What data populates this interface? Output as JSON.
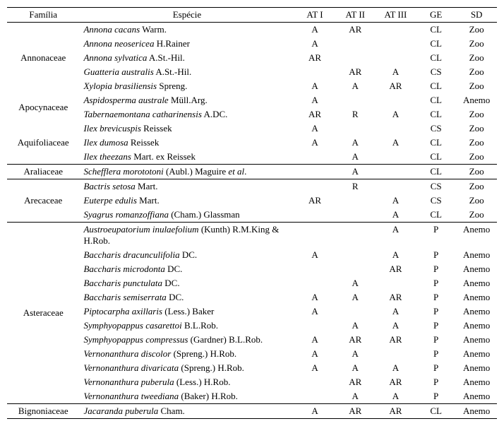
{
  "header": {
    "familia": "Família",
    "especie": "Espécie",
    "at1": "AT I",
    "at2": "AT II",
    "at3": "AT III",
    "ge": "GE",
    "sd": "SD"
  },
  "groups": [
    {
      "family": "Annonaceae",
      "family_rowspan": 5,
      "rows": [
        {
          "sp": "Annona cacans",
          "auth": " Warm.",
          "at1": "A",
          "at2": "AR",
          "at3": "",
          "ge": "CL",
          "sd": "Zoo"
        },
        {
          "sp": "Annona neosericea",
          "auth": " H.Rainer",
          "at1": "A",
          "at2": "",
          "at3": "",
          "ge": "CL",
          "sd": "Zoo"
        },
        {
          "sp": "Annona sylvatica",
          "auth": " A.St.-Hil.",
          "at1": "AR",
          "at2": "",
          "at3": "",
          "ge": "CL",
          "sd": "Zoo"
        },
        {
          "sp": "Guatteria australis",
          "auth": " A.St.-Hil.",
          "at1": "",
          "at2": "AR",
          "at3": "A",
          "ge": "CS",
          "sd": "Zoo"
        },
        {
          "sp": "Xylopia brasiliensis",
          "auth": " Spreng.",
          "at1": "A",
          "at2": "A",
          "at3": "AR",
          "ge": "CL",
          "sd": "Zoo"
        }
      ]
    },
    {
      "family": "Apocynaceae",
      "family_rowspan": 2,
      "rows": [
        {
          "sp": "Aspidosperma australe",
          "auth": " Müll.Arg.",
          "at1": "A",
          "at2": "",
          "at3": "",
          "ge": "CL",
          "sd": "Anemo"
        },
        {
          "sp": "Tabernaemontana catharinensis",
          "auth": " A.DC.",
          "at1": "AR",
          "at2": "R",
          "at3": "A",
          "ge": "CL",
          "sd": "Zoo"
        }
      ]
    },
    {
      "family": "Aquifoliaceae",
      "family_rowspan": 3,
      "group_end": true,
      "rows": [
        {
          "sp": "Ilex brevicuspis",
          "auth": " Reissek",
          "at1": "A",
          "at2": "",
          "at3": "",
          "ge": "CS",
          "sd": "Zoo"
        },
        {
          "sp": "Ilex dumosa",
          "auth": " Reissek",
          "at1": "A",
          "at2": "A",
          "at3": "A",
          "ge": "CL",
          "sd": "Zoo"
        },
        {
          "sp": "Ilex theezans",
          "auth": " Mart. ex Reissek",
          "at1": "",
          "at2": "A",
          "at3": "",
          "ge": "CL",
          "sd": "Zoo"
        }
      ]
    },
    {
      "family": "Araliaceae",
      "family_rowspan": 1,
      "group_end": true,
      "rows": [
        {
          "sp": "Schefflera morototoni",
          "auth": " (Aubl.) Maguire ",
          "auth_ital": "et al",
          "auth_tail": ".",
          "at1": "",
          "at2": "A",
          "at3": "",
          "ge": "CL",
          "sd": "Zoo"
        }
      ]
    },
    {
      "family": "Arecaceae",
      "family_rowspan": 3,
      "group_end": true,
      "rows": [
        {
          "sp": "Bactris setosa",
          "auth": " Mart.",
          "at1": "",
          "at2": "R",
          "at3": "",
          "ge": "CS",
          "sd": "Zoo"
        },
        {
          "sp": "Euterpe edulis",
          "auth": " Mart.",
          "at1": "AR",
          "at2": "",
          "at3": "A",
          "ge": "CS",
          "sd": "Zoo"
        },
        {
          "sp": "Syagrus romanzoffiana",
          "auth": " (Cham.) Glassman",
          "at1": "",
          "at2": "",
          "at3": "A",
          "ge": "CL",
          "sd": "Zoo"
        }
      ]
    },
    {
      "family": "Asteraceae",
      "family_rowspan": 12,
      "group_end": true,
      "rows": [
        {
          "sp": "Austroeupatorium inulaefolium",
          "auth": " (Kunth) R.M.King & H.Rob.",
          "at1": "",
          "at2": "",
          "at3": "A",
          "ge": "P",
          "sd": "Anemo"
        },
        {
          "sp": "Baccharis dracunculifolia",
          "auth": " DC.",
          "at1": "A",
          "at2": "",
          "at3": "A",
          "ge": "P",
          "sd": "Anemo"
        },
        {
          "sp": "Baccharis microdonta",
          "auth": " DC.",
          "at1": "",
          "at2": "",
          "at3": "AR",
          "ge": "P",
          "sd": "Anemo"
        },
        {
          "sp": "Baccharis punctulata",
          "auth": " DC.",
          "at1": "",
          "at2": "A",
          "at3": "",
          "ge": "P",
          "sd": "Anemo"
        },
        {
          "sp": "Baccharis semiserrata",
          "auth": " DC.",
          "at1": "A",
          "at2": "A",
          "at3": "AR",
          "ge": "P",
          "sd": "Anemo"
        },
        {
          "sp": "Piptocarpha axillaris",
          "auth": " (Less.) Baker",
          "at1": "A",
          "at2": "",
          "at3": "A",
          "ge": "P",
          "sd": "Anemo"
        },
        {
          "sp": "Symphyopappus casarettoi",
          "auth": " B.L.Rob.",
          "at1": "",
          "at2": "A",
          "at3": "A",
          "ge": "P",
          "sd": "Anemo"
        },
        {
          "sp": "Symphyopappus compressus",
          "auth": " (Gardner) B.L.Rob.",
          "at1": "A",
          "at2": "AR",
          "at3": "AR",
          "ge": "P",
          "sd": "Anemo"
        },
        {
          "sp": "Vernonanthura discolor",
          "auth": " (Spreng.) H.Rob.",
          "at1": "A",
          "at2": "A",
          "at3": "",
          "ge": "P",
          "sd": "Anemo"
        },
        {
          "sp": "Vernonanthura divaricata",
          "auth": " (Spreng.) H.Rob.",
          "at1": "A",
          "at2": "A",
          "at3": "A",
          "ge": "P",
          "sd": "Anemo"
        },
        {
          "sp": "Vernonanthura puberula",
          "auth": " (Less.) H.Rob.",
          "at1": "",
          "at2": "AR",
          "at3": "AR",
          "ge": "P",
          "sd": "Anemo"
        },
        {
          "sp": "Vernonanthura tweediana",
          "auth": " (Baker) H.Rob.",
          "at1": "",
          "at2": "A",
          "at3": "A",
          "ge": "P",
          "sd": "Anemo"
        }
      ]
    },
    {
      "family": "Bignoniaceae",
      "family_rowspan": 1,
      "rows": [
        {
          "sp": "Jacaranda puberula",
          "auth": " Cham.",
          "at1": "A",
          "at2": "AR",
          "at3": "AR",
          "ge": "CL",
          "sd": "Anemo"
        }
      ]
    }
  ]
}
